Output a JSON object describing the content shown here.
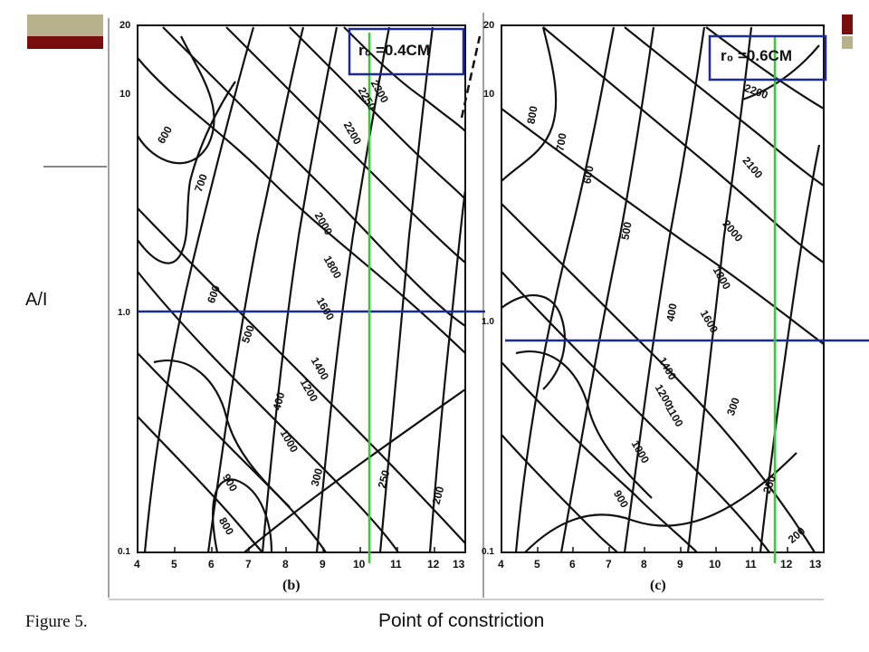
{
  "slide": {
    "y_axis_label": "A/I",
    "figure_caption": "Figure 5.",
    "bottom_caption": "Point of constriction"
  },
  "panel_b": {
    "sublabel": "(b)",
    "radius_box": "r₀ =0.4CM",
    "y_ticks": [
      "20",
      "10",
      "1.0",
      "0.1"
    ],
    "x_ticks": [
      "4",
      "5",
      "6",
      "7",
      "8",
      "9",
      "10",
      "11",
      "12",
      "13"
    ],
    "contour_labels": [
      "600",
      "700",
      "600",
      "500",
      "400",
      "900",
      "800",
      "1000",
      "1200",
      "1400",
      "1600",
      "1800",
      "2000",
      "2200",
      "2250",
      "2300",
      "300",
      "250",
      "200"
    ]
  },
  "panel_c": {
    "sublabel": "(c)",
    "radius_box": "r₀ =0.6CM",
    "y_ticks": [
      "20",
      "10",
      "1.0",
      "0.1"
    ],
    "x_ticks": [
      "4",
      "5",
      "6",
      "7",
      "8",
      "9",
      "10",
      "11",
      "12",
      "13"
    ],
    "contour_labels": [
      "800",
      "700",
      "600",
      "500",
      "400",
      "1600",
      "1400",
      "1200",
      "1100",
      "1000",
      "900",
      "1800",
      "2000",
      "2100",
      "2200",
      "300",
      "250",
      "200"
    ]
  },
  "colors": {
    "frame_dark_red": "#7a0e0e",
    "frame_olive": "#b7b28c",
    "marker_blue": "#1a2a9a",
    "marker_green": "#33cc33",
    "contour": "#111111"
  }
}
